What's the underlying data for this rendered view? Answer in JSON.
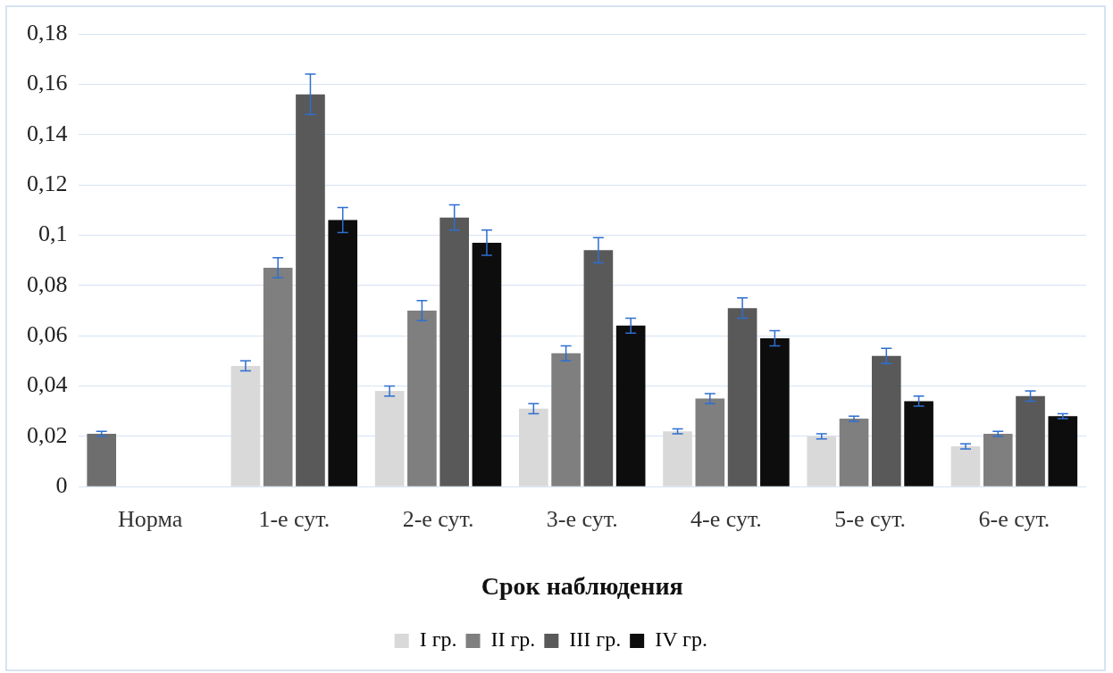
{
  "chart_data": {
    "type": "bar",
    "xlabel": "Срок наблюдения",
    "categories": [
      "Норма",
      "1-е сут.",
      "2-е сут.",
      "3-е сут.",
      "4-е сут.",
      "5-е сут.",
      "6-е сут."
    ],
    "series": [
      {
        "name": "I гр.",
        "color": "#d9d9d9",
        "colors": [
          "#6e6e6e",
          "#d9d9d9",
          "#d9d9d9",
          "#d9d9d9",
          "#d9d9d9",
          "#d9d9d9",
          "#d9d9d9"
        ],
        "values": [
          0.021,
          0.048,
          0.038,
          0.031,
          0.022,
          0.02,
          0.016
        ],
        "errors": [
          0.001,
          0.002,
          0.002,
          0.002,
          0.001,
          0.001,
          0.001
        ]
      },
      {
        "name": "II гр.",
        "color": "#7f7f7f",
        "values": [
          null,
          0.087,
          0.07,
          0.053,
          0.035,
          0.027,
          0.021
        ],
        "errors": [
          null,
          0.004,
          0.004,
          0.003,
          0.002,
          0.001,
          0.001
        ]
      },
      {
        "name": "III гр.",
        "color": "#595959",
        "values": [
          null,
          0.156,
          0.107,
          0.094,
          0.071,
          0.052,
          0.036
        ],
        "errors": [
          null,
          0.008,
          0.005,
          0.005,
          0.004,
          0.003,
          0.002
        ]
      },
      {
        "name": "IV гр.",
        "color": "#0d0d0d",
        "values": [
          null,
          0.106,
          0.097,
          0.064,
          0.059,
          0.034,
          0.028
        ],
        "errors": [
          null,
          0.005,
          0.005,
          0.003,
          0.003,
          0.002,
          0.001
        ]
      }
    ],
    "ylim": [
      0,
      0.18
    ],
    "yticks": [
      0,
      {
        "value": 0.02,
        "label": "0,02"
      },
      {
        "value": 0.04,
        "label": "0,04"
      },
      {
        "value": 0.06,
        "label": "0,06"
      },
      {
        "value": 0.08,
        "label": "0,08"
      },
      {
        "value": 0.1,
        "label": "0,1"
      },
      {
        "value": 0.12,
        "label": "0,12"
      },
      {
        "value": 0.14,
        "label": "0,14"
      },
      {
        "value": 0.16,
        "label": "0,16"
      },
      {
        "value": 0.18,
        "label": "0,18"
      }
    ],
    "grid": "y",
    "legend": "bottom"
  }
}
